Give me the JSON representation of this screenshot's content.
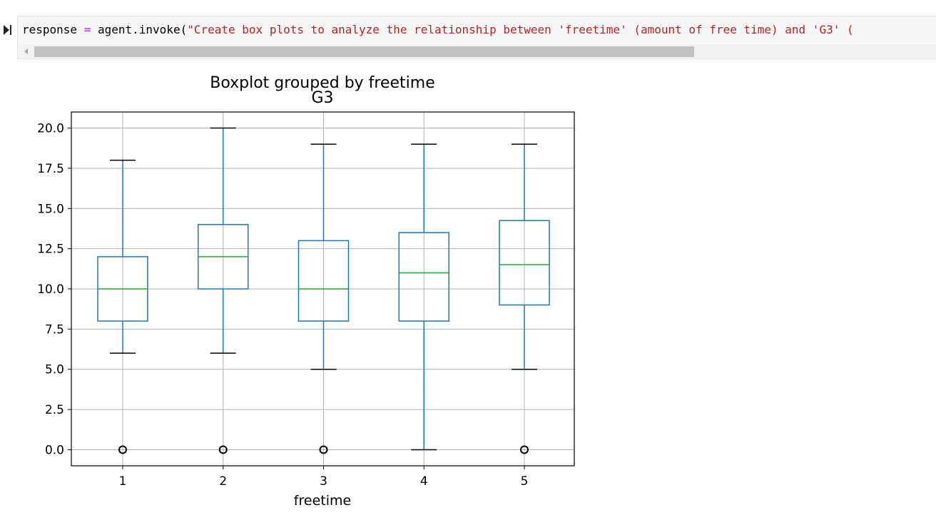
{
  "cell": {
    "code_var": "response",
    "code_op": "=",
    "code_call": "agent.invoke(",
    "code_string": "\"Create box plots to analyze the relationship between 'freetime' (amount of free time) and 'G3' (",
    "icon": "run-triangle-icon"
  },
  "chart_data": {
    "type": "box",
    "title": "Boxplot grouped by freetime",
    "subtitle": "G3",
    "xlabel": "freetime",
    "ylabel": "",
    "categories": [
      "1",
      "2",
      "3",
      "4",
      "5"
    ],
    "ylim": [
      -1.0,
      21.0
    ],
    "yticks": [
      "0.0",
      "2.5",
      "5.0",
      "7.5",
      "10.0",
      "12.5",
      "15.0",
      "17.5",
      "20.0"
    ],
    "grid": true,
    "boxes": [
      {
        "whisker_low": 6,
        "q1": 8,
        "median": 10,
        "q3": 12,
        "whisker_high": 18,
        "outliers": [
          0
        ]
      },
      {
        "whisker_low": 6,
        "q1": 10,
        "median": 12,
        "q3": 14,
        "whisker_high": 20,
        "outliers": [
          0
        ]
      },
      {
        "whisker_low": 5,
        "q1": 8,
        "median": 10,
        "q3": 13,
        "whisker_high": 19,
        "outliers": [
          0
        ]
      },
      {
        "whisker_low": 0,
        "q1": 8,
        "median": 11,
        "q3": 13.5,
        "whisker_high": 19,
        "outliers": []
      },
      {
        "whisker_low": 5,
        "q1": 9,
        "median": 11.5,
        "q3": 14.25,
        "whisker_high": 19,
        "outliers": [
          0
        ]
      }
    ],
    "colors": {
      "box": "#1f77b4",
      "median": "#2ca02c",
      "cap": "#000000",
      "grid": "#b0b0b0"
    }
  }
}
